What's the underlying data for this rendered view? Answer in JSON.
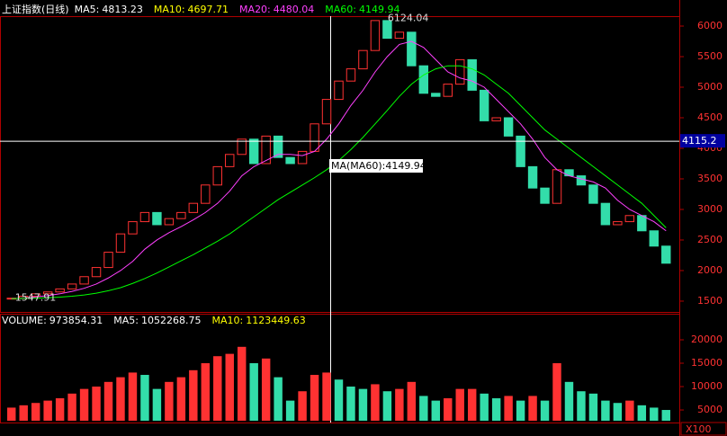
{
  "chart_data": [
    {
      "type": "candlestick",
      "title": "上证指数(日线)",
      "legend": [
        {
          "name": "MA5:",
          "value": 4813.23,
          "color": "#ffffff"
        },
        {
          "name": "MA10:",
          "value": 4697.71,
          "color": "#ffff00"
        },
        {
          "name": "MA20:",
          "value": 4480.04,
          "color": "#ff40ff"
        },
        {
          "name": "MA60:",
          "value": 4149.94,
          "color": "#00ff00"
        }
      ],
      "values": [
        1548,
        1580,
        1620,
        1650,
        1700,
        1780,
        1900,
        2050,
        2300,
        2600,
        2800,
        2950,
        2750,
        2850,
        2950,
        3100,
        3400,
        3700,
        3900,
        4150,
        3750,
        4200,
        3850,
        3750,
        3950,
        4400,
        4800,
        5100,
        5300,
        5600,
        6090,
        5800,
        5900,
        5350,
        4900,
        4850,
        5050,
        5450,
        4950,
        4450,
        4500,
        4200,
        3700,
        3350,
        3100,
        3650,
        3550,
        3400,
        3100,
        2750,
        2800,
        2900,
        2650,
        2400,
        2120
      ],
      "up_color": "#ff3232",
      "down_color": "#33ddaa",
      "series": [
        {
          "name": "MA20",
          "color": "#ff40ff",
          "values": [
            1540,
            1550,
            1570,
            1590,
            1620,
            1660,
            1710,
            1780,
            1880,
            2000,
            2150,
            2350,
            2500,
            2620,
            2720,
            2830,
            2950,
            3100,
            3300,
            3550,
            3700,
            3800,
            3900,
            3900,
            3880,
            3950,
            4150,
            4400,
            4700,
            4950,
            5250,
            5500,
            5700,
            5750,
            5650,
            5450,
            5250,
            5150,
            5100,
            5000,
            4800,
            4600,
            4400,
            4150,
            3850,
            3650,
            3550,
            3500,
            3450,
            3350,
            3150,
            3000,
            2900,
            2800,
            2650
          ]
        },
        {
          "name": "MA60",
          "color": "#00ff00",
          "values": [
            1540,
            1545,
            1550,
            1555,
            1565,
            1580,
            1600,
            1630,
            1670,
            1720,
            1790,
            1870,
            1960,
            2060,
            2160,
            2260,
            2370,
            2480,
            2600,
            2740,
            2880,
            3020,
            3160,
            3280,
            3400,
            3520,
            3650,
            3800,
            3980,
            4180,
            4400,
            4620,
            4850,
            5050,
            5200,
            5300,
            5350,
            5350,
            5300,
            5200,
            5050,
            4900,
            4700,
            4500,
            4300,
            4150,
            4000,
            3850,
            3700,
            3550,
            3400,
            3250,
            3100,
            2900,
            2700
          ]
        }
      ],
      "high": 6124.04,
      "low": 1547.91,
      "crosshair": 4115.2,
      "tooltip": "MA(MA60):4149.94",
      "ylim": [
        1323,
        6147
      ],
      "yticks": [
        1500,
        2000,
        2500,
        3000,
        3500,
        4000,
        4500,
        5000,
        5500,
        6000
      ]
    },
    {
      "type": "bar",
      "legend": [
        {
          "name": "VOLUME:",
          "value": 973854.31,
          "color": "#ffffff"
        },
        {
          "name": "MA5:",
          "value": 1052268.75,
          "color": "#ffffff"
        },
        {
          "name": "MA10:",
          "value": 1123449.63,
          "color": "#ffff00"
        }
      ],
      "values": [
        5500,
        6000,
        6500,
        7000,
        7500,
        8500,
        9500,
        10000,
        11000,
        12000,
        13000,
        12500,
        9500,
        11000,
        12000,
        13500,
        15000,
        16500,
        17000,
        18500,
        15000,
        16000,
        12000,
        7000,
        9000,
        12500,
        13000,
        11500,
        10000,
        9500,
        10500,
        9000,
        9500,
        11000,
        8000,
        7000,
        7500,
        9500,
        9500,
        8500,
        7500,
        8000,
        7000,
        8000,
        7000,
        15000,
        11000,
        9000,
        8500,
        7000,
        6500,
        7000,
        6000,
        5500,
        5000
      ],
      "unit": "X100",
      "ylim": [
        2700,
        22500
      ],
      "yticks": [
        5000,
        10000,
        15000,
        20000
      ]
    }
  ]
}
